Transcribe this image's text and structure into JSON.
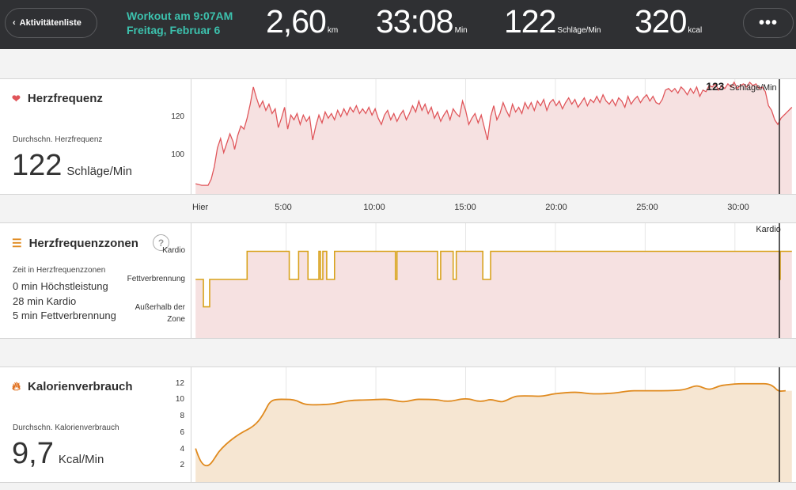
{
  "header": {
    "back_label": "Aktivitätenliste",
    "workout_title": "Workout am 9:07AM",
    "workout_date": "Freitag, Februar 6",
    "stats": [
      {
        "value": "2,60",
        "unit": "km"
      },
      {
        "value": "33:08",
        "unit": "Min"
      },
      {
        "value": "122",
        "unit": "Schläge/Min"
      },
      {
        "value": "320",
        "unit": "kcal"
      }
    ],
    "more_label": "•••"
  },
  "heart": {
    "title": "Herzfrequenz",
    "avg_label": "Durchschn. Herzfrequenz",
    "avg_value": "122",
    "avg_unit": "Schläge/Min",
    "y_ticks": [
      "120",
      "100"
    ],
    "cursor_value": "123",
    "cursor_unit": "Schläge/Min",
    "color": "#e0555a",
    "fill": "#f6e1e1"
  },
  "x_axis": [
    "Hier",
    "5:00",
    "10:00",
    "15:00",
    "20:00",
    "25:00",
    "30:00"
  ],
  "zones": {
    "title": "Herzfrequenzzonen",
    "help": "?",
    "time_label": "Zeit in Herzfrequenzzonen",
    "lines": [
      "0 min Höchstleistung",
      "28 min Kardio",
      "5 min Fettverbrennung"
    ],
    "levels": [
      "Kardio",
      "Fettverbrennung",
      "Außerhalb der",
      "Zone"
    ],
    "cursor_label": "Kardio",
    "color": "#d8a21b",
    "fill": "#f6e1e1"
  },
  "calories": {
    "title": "Kalorienverbrauch",
    "avg_label": "Durchschn. Kalorienverbrauch",
    "avg_value": "9,7",
    "avg_unit": "Kcal/Min",
    "y_ticks": [
      "12",
      "10",
      "8",
      "6",
      "4",
      "2"
    ],
    "color": "#e08a1e",
    "fill": "#f6e6d2"
  }
}
